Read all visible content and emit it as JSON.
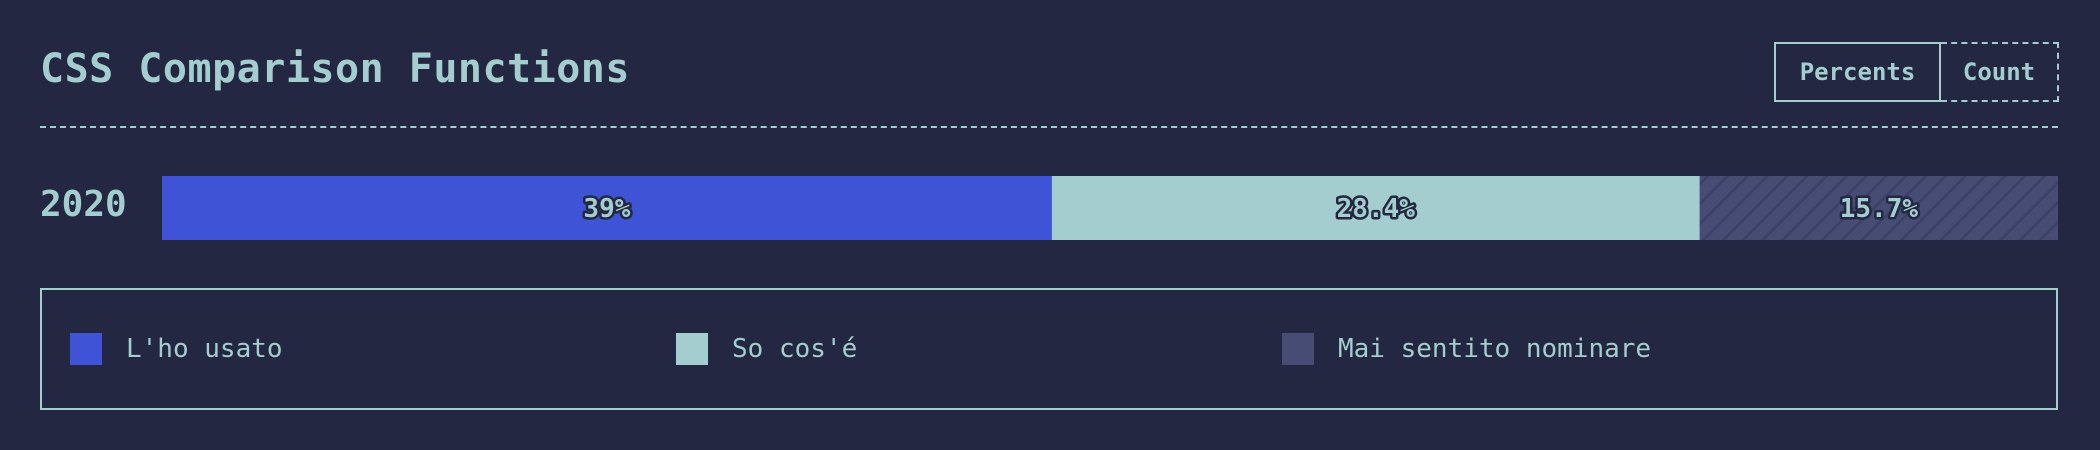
{
  "header": {
    "title": "CSS Comparison Functions"
  },
  "toggle": {
    "percents_label": "Percents",
    "count_label": "Count",
    "active": "percents"
  },
  "chart_data": {
    "type": "bar",
    "orientation": "horizontal",
    "stacked": true,
    "categories": [
      "2020"
    ],
    "series": [
      {
        "name": "L'ho usato",
        "values": [
          39
        ],
        "label": "39%",
        "color": "#3e53d6"
      },
      {
        "name": "So cos'é",
        "values": [
          28.4
        ],
        "label": "28.4%",
        "color": "#a3cdce"
      },
      {
        "name": "Mai sentito nominare",
        "values": [
          15.7
        ],
        "label": "15.7%",
        "color": "#474c74"
      }
    ],
    "legend_position": "bottom"
  },
  "colors": {
    "background": "#232741",
    "text": "#a3cdce"
  }
}
